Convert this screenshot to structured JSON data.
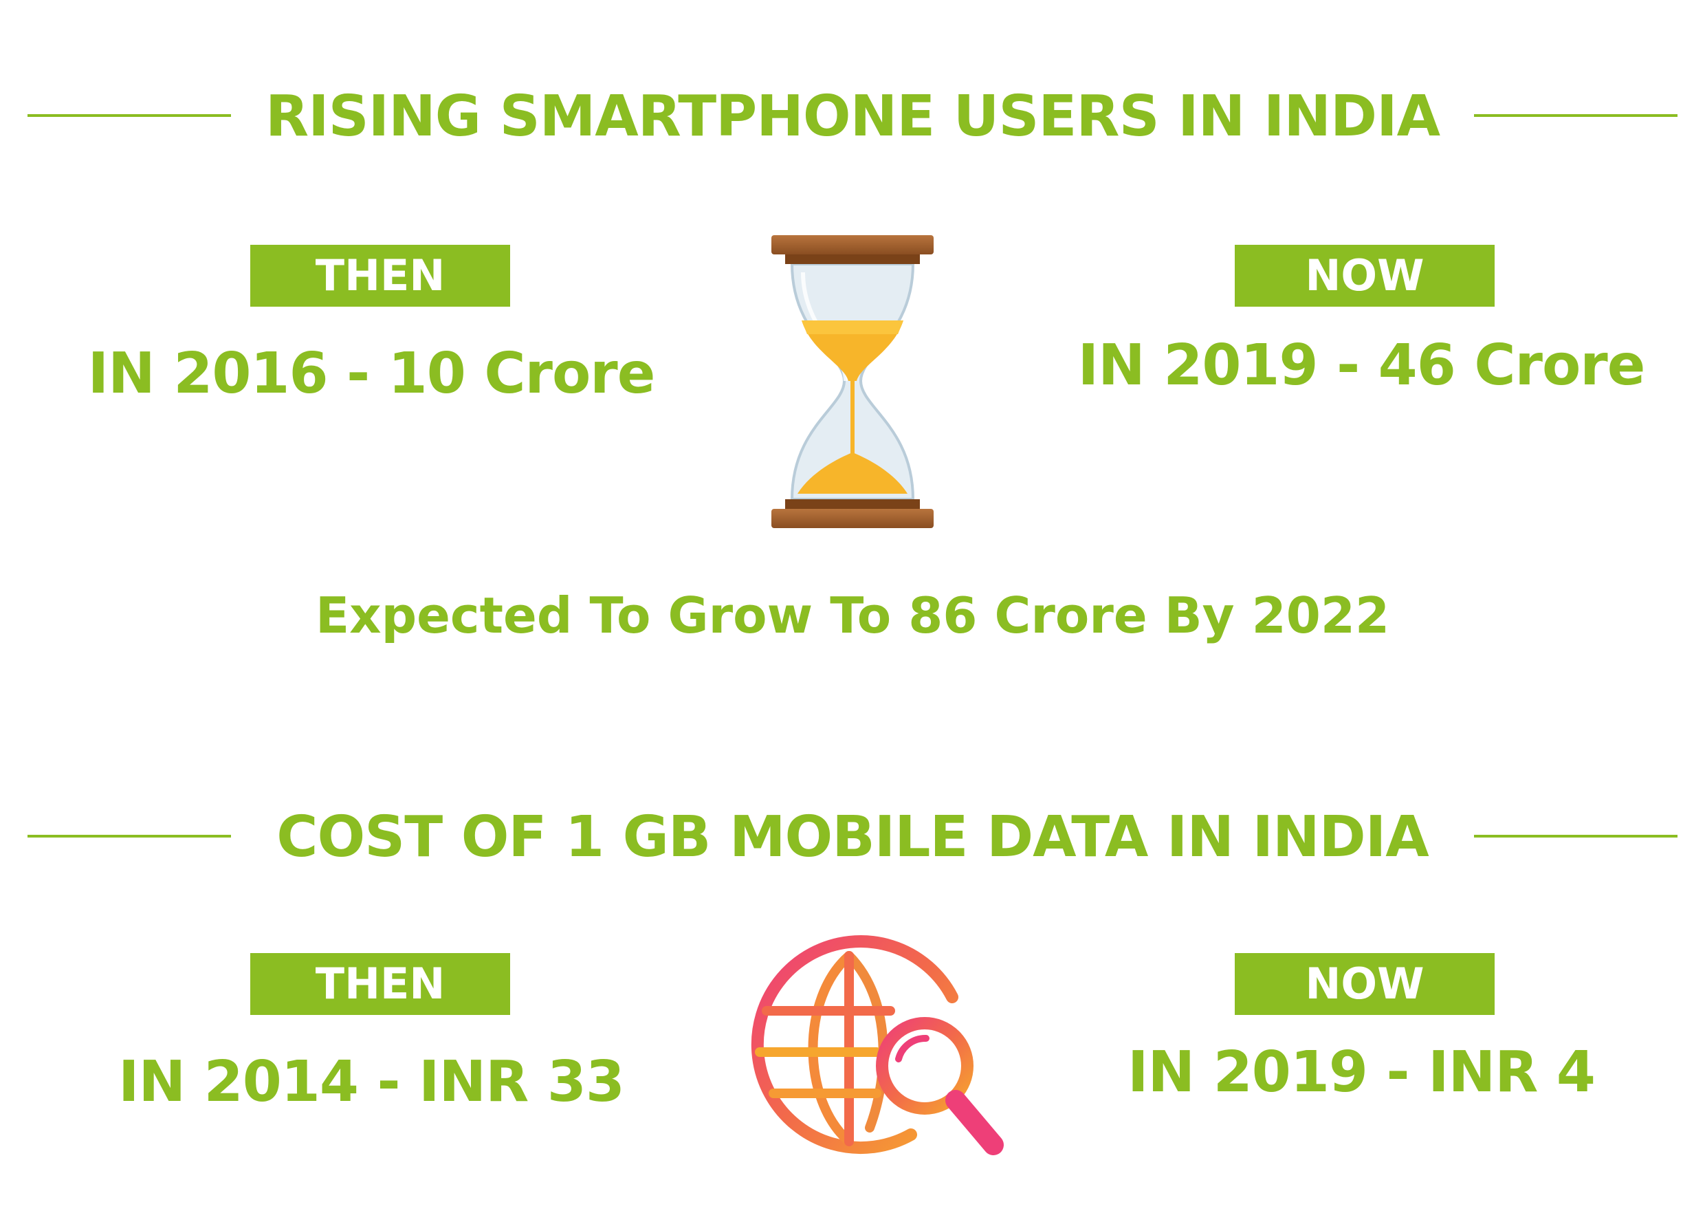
{
  "colors": {
    "accent": "#8bbd22",
    "badge_text": "#ffffff"
  },
  "section1": {
    "title": "RISING SMARTPHONE USERS IN INDIA",
    "then_label": "THEN",
    "then_value": "IN 2016 - 10 Crore",
    "now_label": "NOW",
    "now_value": "IN 2019 - 46 Crore",
    "icon": "hourglass-icon",
    "note": "Expected To Grow To 86 Crore By 2022"
  },
  "section2": {
    "title": "COST OF 1 GB MOBILE DATA IN INDIA",
    "then_label": "THEN",
    "then_value": "IN 2014 - INR 33",
    "now_label": "NOW",
    "now_value": "IN 2019 - INR 4",
    "icon": "globe-search-icon"
  }
}
